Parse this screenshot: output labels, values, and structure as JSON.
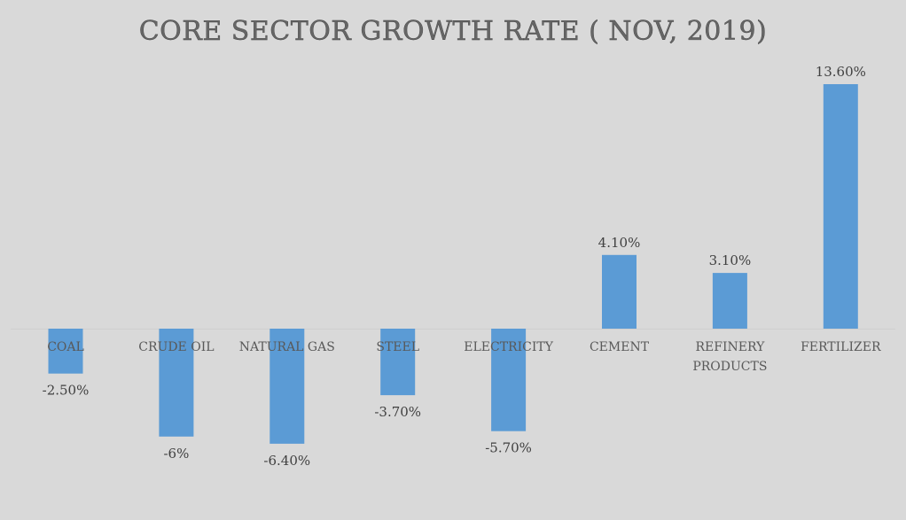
{
  "chart_data": {
    "type": "bar",
    "title": "CORE SECTOR GROWTH RATE ( NOV, 2019)",
    "xlabel": "",
    "ylabel": "",
    "categories": [
      "COAL",
      "CRUDE OIL",
      "NATURAL GAS",
      "STEEL",
      "ELECTRICITY",
      "CEMENT",
      "REFINERY PRODUCTS",
      "FERTILIZER"
    ],
    "category_lines": [
      [
        "COAL"
      ],
      [
        "CRUDE OIL"
      ],
      [
        "NATURAL GAS"
      ],
      [
        "STEEL"
      ],
      [
        "ELECTRICITY"
      ],
      [
        "CEMENT"
      ],
      [
        "REFINERY",
        "PRODUCTS"
      ],
      [
        "FERTILIZER"
      ]
    ],
    "values": [
      -2.5,
      -6,
      -6.4,
      -3.7,
      -5.7,
      4.1,
      3.1,
      13.6
    ],
    "data_labels": [
      "-2.50%",
      "-6%",
      "-6.40%",
      "-3.70%",
      "-5.70%",
      "4.10%",
      "3.10%",
      "13.60%"
    ],
    "unit": "%",
    "ylim": [
      -6.4,
      13.6
    ],
    "grid": false,
    "legend": "none",
    "bar_color": "#5b9bd5",
    "background_color": "#d9d9d9"
  }
}
